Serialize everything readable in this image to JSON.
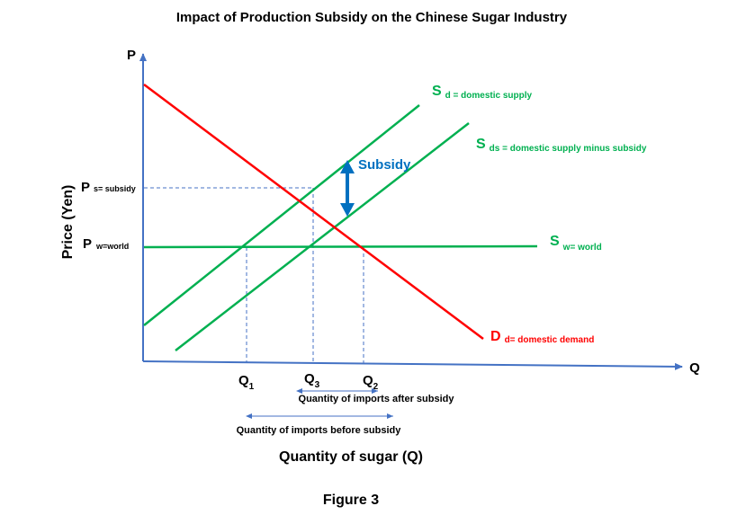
{
  "title": "Impact of Production Subsidy on the Chinese Sugar Industry",
  "axes": {
    "y_symbol": "P",
    "x_symbol": "Q",
    "y_label": "Price (Yen)",
    "x_label": "Quantity of sugar (Q)"
  },
  "curves": {
    "domestic_supply": {
      "symbol": "S",
      "sub": "d = domestic supply",
      "color": "#00b050"
    },
    "supply_minus_subsidy": {
      "symbol": "S",
      "sub": "ds = domestic supply minus subsidy",
      "color": "#00b050"
    },
    "world_supply": {
      "symbol": "S",
      "sub": "w= world",
      "color": "#00b050"
    },
    "domestic_demand": {
      "symbol": "D",
      "sub": "d= domestic demand",
      "color": "#ff0000"
    }
  },
  "price_levels": {
    "subsidy_price": {
      "main": "P",
      "sub": "s= subsidy"
    },
    "world_price": {
      "main": "P",
      "sub": "w=world"
    }
  },
  "quantities": {
    "q1": {
      "main": "Q",
      "sub": "1"
    },
    "q3": {
      "main": "Q",
      "sub": "3"
    },
    "q2": {
      "main": "Q",
      "sub": "2"
    }
  },
  "annotations": {
    "subsidy": "Subsidy",
    "imports_after": "Quantity of imports after subsidy",
    "imports_before": "Quantity of imports before subsidy"
  },
  "colors": {
    "axis": "#4472c4",
    "supply": "#00b050",
    "demand": "#ff0000",
    "subsidy_arrow": "#0070c0",
    "guide": "#4472c4"
  },
  "caption": "Figure 3"
}
